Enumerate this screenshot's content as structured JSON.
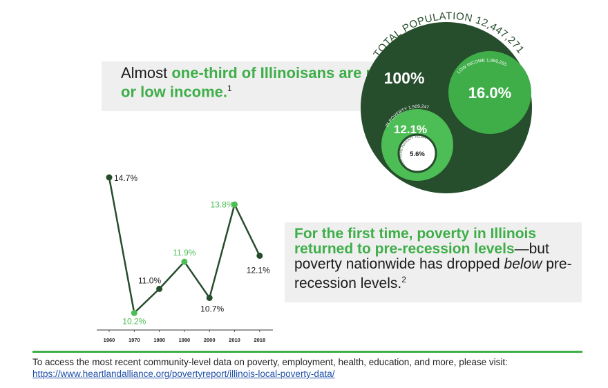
{
  "colors": {
    "dark_green": "#264d2c",
    "mid_green": "#3fae49",
    "light_green": "#4dbd55",
    "callout_bg": "#efefef",
    "link": "#1f4fa8"
  },
  "headline_top": {
    "plain1": "Almost ",
    "green": "one-third of Illinoisans are poor or low income.",
    "footnote": "1"
  },
  "headline_bottom": {
    "green": "For the first time, poverty in Illinois returned to pre-recession levels",
    "plain1": "—but poverty nationwide has dropped ",
    "em": "below",
    "plain2": " pre-recession levels.",
    "footnote": "2"
  },
  "population": {
    "total_label": "TOTAL POPULATION 12,447,271",
    "total_pct": "100%",
    "low_income_label": "LOW INCOME 1,989,265",
    "low_income_pct": "16.0%",
    "poverty_label": "IN POVERTY 1,509,247",
    "poverty_pct": "12.1%",
    "extreme_label": "IN EXTREME POVERTY 702,804",
    "extreme_pct": "5.6%"
  },
  "chart_data": {
    "type": "line",
    "x": [
      "1960",
      "1970",
      "1980",
      "1990",
      "2000",
      "2010",
      "2018"
    ],
    "values": [
      14.7,
      10.2,
      11.0,
      11.9,
      10.7,
      13.8,
      12.1
    ],
    "data_labels": [
      "14.7%",
      "10.2%",
      "11.0%",
      "11.9%",
      "10.7%",
      "13.8%",
      "12.1%"
    ],
    "point_colors": [
      "#264d2c",
      "#4dbd55",
      "#264d2c",
      "#4dbd55",
      "#264d2c",
      "#4dbd55",
      "#264d2c"
    ],
    "ylim": [
      10.0,
      14.7
    ],
    "grid": false
  },
  "footer": {
    "text": "To access the most recent community-level data on poverty, employment, health, education, and more, please visit: ",
    "link": "https://www.heartlandalliance.org/povertyreport/illinois-local-poverty-data/"
  }
}
